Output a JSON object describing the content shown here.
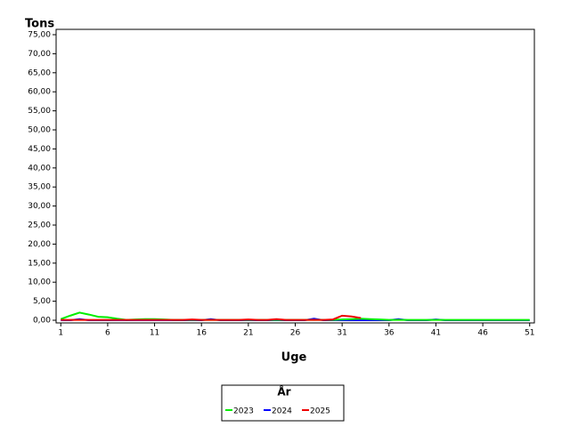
{
  "chart_data": {
    "type": "line",
    "y_label": "Tons",
    "x_label": "Uge",
    "legend_title": "År",
    "x": [
      1,
      2,
      3,
      4,
      5,
      6,
      7,
      8,
      9,
      10,
      11,
      12,
      13,
      14,
      15,
      16,
      17,
      18,
      19,
      20,
      21,
      22,
      23,
      24,
      25,
      26,
      27,
      28,
      29,
      30,
      31,
      32,
      33,
      34,
      35,
      36,
      37,
      38,
      39,
      40,
      41,
      42,
      43,
      44,
      45,
      46,
      47,
      48,
      49,
      50,
      51
    ],
    "xlim": [
      0.5,
      51.5
    ],
    "xticks": [
      1,
      6,
      11,
      16,
      21,
      26,
      31,
      36,
      41,
      46,
      51
    ],
    "ylim": [
      -0.7,
      76.4
    ],
    "yticks": [
      {
        "value": 0,
        "label": "0,00"
      },
      {
        "value": 5,
        "label": "5,00"
      },
      {
        "value": 10,
        "label": "10,00"
      },
      {
        "value": 15,
        "label": "15,00"
      },
      {
        "value": 20,
        "label": "20,00"
      },
      {
        "value": 25,
        "label": "25,00"
      },
      {
        "value": 30,
        "label": "30,00"
      },
      {
        "value": 35,
        "label": "35,00"
      },
      {
        "value": 40,
        "label": "40,00"
      },
      {
        "value": 45,
        "label": "45,00"
      },
      {
        "value": 50,
        "label": "50,00"
      },
      {
        "value": 55,
        "label": "55,00"
      },
      {
        "value": 60,
        "label": "60,00"
      },
      {
        "value": 65,
        "label": "65,00"
      },
      {
        "value": 70,
        "label": "70,00"
      },
      {
        "value": 75,
        "label": "75,00"
      }
    ],
    "series": [
      {
        "name": "2024",
        "color": "#0000ff",
        "values": [
          0,
          0,
          0.3,
          0,
          0,
          0,
          0,
          0,
          0,
          0,
          0,
          0,
          0,
          0,
          0,
          0,
          0.3,
          0,
          0,
          0,
          0,
          0,
          0,
          0,
          0,
          0,
          0,
          0.4,
          0,
          0,
          0,
          0,
          0,
          0,
          0,
          0,
          0.3,
          0,
          0,
          0,
          0.2,
          0,
          0,
          0,
          0,
          0,
          0,
          0,
          0,
          0,
          0
        ]
      },
      {
        "name": "2023",
        "color": "#00ee00",
        "values": [
          0.3,
          1.2,
          2.0,
          1.5,
          0.9,
          0.8,
          0.4,
          0.1,
          0.2,
          0.3,
          0.3,
          0.2,
          0.1,
          0.1,
          0.1,
          0.1,
          0.1,
          0.1,
          0.1,
          0.1,
          0.1,
          0.1,
          0.1,
          0.1,
          0.1,
          0.1,
          0.1,
          0.1,
          0.1,
          0.1,
          0.2,
          0.3,
          0.4,
          0.3,
          0.2,
          0.1,
          0.1,
          0.1,
          0.1,
          0.1,
          0.1,
          0.1,
          0.1,
          0.1,
          0.1,
          0.1,
          0.1,
          0.1,
          0.1,
          0.1,
          0.1
        ]
      },
      {
        "name": "2025",
        "color": "#ee0000",
        "values": [
          0.1,
          0.1,
          0.1,
          0.1,
          0.1,
          0.1,
          0.1,
          0.1,
          0.1,
          0.1,
          0.1,
          0.1,
          0.1,
          0.1,
          0.2,
          0.1,
          0.1,
          0.1,
          0.1,
          0.1,
          0.2,
          0.1,
          0.1,
          0.3,
          0.1,
          0.1,
          0.1,
          0.1,
          0.1,
          0.2,
          1.2,
          1.0,
          0.6,
          null,
          null,
          null,
          null,
          null,
          null,
          null,
          null,
          null,
          null,
          null,
          null,
          null,
          null,
          null,
          null,
          null,
          null
        ]
      }
    ],
    "legend_order": [
      1,
      0,
      2
    ]
  }
}
